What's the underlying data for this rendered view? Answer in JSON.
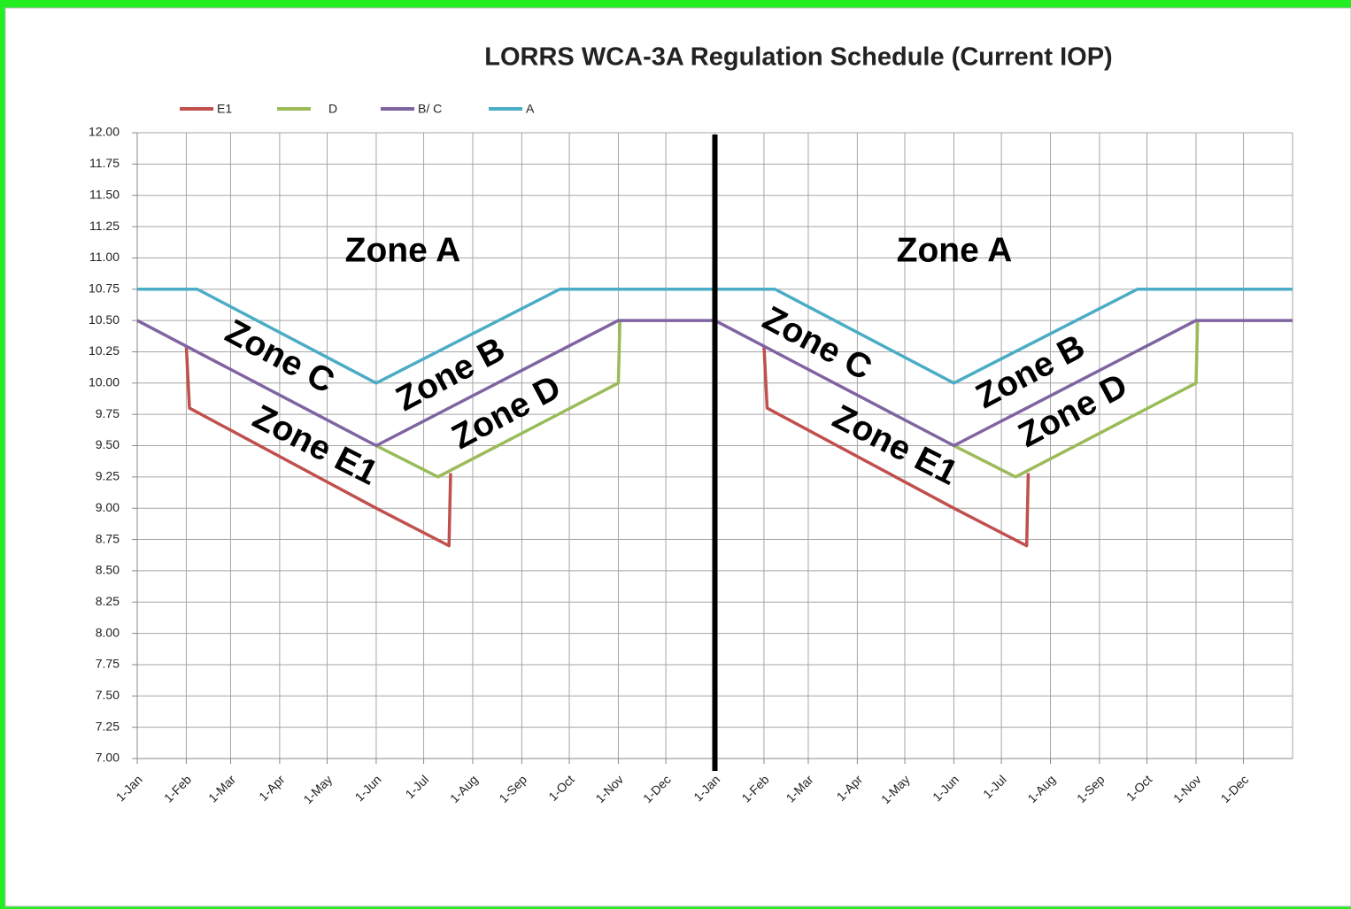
{
  "chart_data": {
    "type": "line",
    "title": "LORRS WCA-3A Regulation Schedule (Current  IOP)",
    "xlim": [
      0,
      730
    ],
    "xticks": [
      {
        "value": 0,
        "label": "1-Jan"
      },
      {
        "value": 31,
        "label": "1-Feb"
      },
      {
        "value": 59,
        "label": "1-Mar"
      },
      {
        "value": 90,
        "label": "1-Apr"
      },
      {
        "value": 120,
        "label": "1-May"
      },
      {
        "value": 151,
        "label": "1-Jun"
      },
      {
        "value": 181,
        "label": "1-Jul"
      },
      {
        "value": 212,
        "label": "1-Aug"
      },
      {
        "value": 243,
        "label": "1-Sep"
      },
      {
        "value": 273,
        "label": "1-Oct"
      },
      {
        "value": 304,
        "label": "1-Nov"
      },
      {
        "value": 334,
        "label": "1-Dec"
      },
      {
        "value": 365,
        "label": "1-Jan"
      },
      {
        "value": 396,
        "label": "1-Feb"
      },
      {
        "value": 424,
        "label": "1-Mar"
      },
      {
        "value": 455,
        "label": "1-Apr"
      },
      {
        "value": 485,
        "label": "1-May"
      },
      {
        "value": 516,
        "label": "1-Jun"
      },
      {
        "value": 546,
        "label": "1-Jul"
      },
      {
        "value": 577,
        "label": "1-Aug"
      },
      {
        "value": 608,
        "label": "1-Sep"
      },
      {
        "value": 638,
        "label": "1-Oct"
      },
      {
        "value": 669,
        "label": "1-Nov"
      },
      {
        "value": 699,
        "label": "1-Dec"
      }
    ],
    "ylim": [
      7,
      12
    ],
    "yticks": [
      {
        "value": 7,
        "label": "7.00"
      },
      {
        "value": 7.25,
        "label": "7.25"
      },
      {
        "value": 7.5,
        "label": "7.50"
      },
      {
        "value": 7.75,
        "label": "7.75"
      },
      {
        "value": 8,
        "label": "8.00"
      },
      {
        "value": 8.25,
        "label": "8.25"
      },
      {
        "value": 8.5,
        "label": "8.50"
      },
      {
        "value": 8.75,
        "label": "8.75"
      },
      {
        "value": 9,
        "label": "9.00"
      },
      {
        "value": 9.25,
        "label": "9.25"
      },
      {
        "value": 9.5,
        "label": "9.50"
      },
      {
        "value": 9.75,
        "label": "9.75"
      },
      {
        "value": 10,
        "label": "10.00"
      },
      {
        "value": 10.25,
        "label": "10.25"
      },
      {
        "value": 10.5,
        "label": "10.50"
      },
      {
        "value": 10.75,
        "label": "10.75"
      },
      {
        "value": 11,
        "label": "11.00"
      },
      {
        "value": 11.25,
        "label": "11.25"
      },
      {
        "value": 11.5,
        "label": "11.50"
      },
      {
        "value": 11.75,
        "label": "11.75"
      },
      {
        "value": 12,
        "label": "12.00"
      }
    ],
    "grid": true,
    "legend": "top-left",
    "series": [
      {
        "name": "E1",
        "color": "#c0504d",
        "x": [
          31,
          33,
          151,
          197,
          198,
          null,
          396,
          398,
          516,
          562,
          563
        ],
        "values": [
          10.3,
          9.8,
          9.0,
          8.7,
          9.28,
          null,
          10.3,
          9.8,
          9.0,
          8.7,
          9.28
        ]
      },
      {
        "name": "D",
        "color": "#9bbb59",
        "x": [
          151,
          190,
          304,
          305,
          null,
          516,
          555,
          669,
          670
        ],
        "values": [
          9.5,
          9.25,
          10.0,
          10.5,
          null,
          9.5,
          9.25,
          10.0,
          10.5
        ]
      },
      {
        "name": "B/ C",
        "color": "#8064a2",
        "x": [
          0,
          151,
          304,
          365,
          516,
          669,
          730
        ],
        "values": [
          10.5,
          9.5,
          10.5,
          10.5,
          9.5,
          10.5,
          10.5
        ]
      },
      {
        "name": "A",
        "color": "#4bacc6",
        "x": [
          0,
          38,
          151,
          267,
          365,
          403,
          516,
          632,
          730
        ],
        "values": [
          10.75,
          10.75,
          10.0,
          10.75,
          10.75,
          10.75,
          10.0,
          10.75,
          10.75
        ]
      }
    ],
    "annotations": [
      "Zone A",
      "Zone C",
      "Zone B",
      "Zone D",
      "Zone E1",
      "Zone A",
      "Zone C",
      "Zone B",
      "Zone D",
      "Zone E1"
    ]
  }
}
